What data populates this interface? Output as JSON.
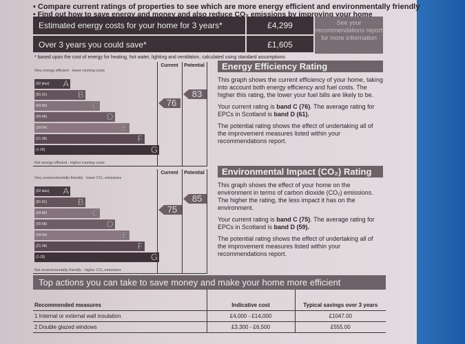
{
  "bullets": [
    "Compare current ratings of properties to see which are more energy efficient and environmentally friendly",
    "Find out how to save energy and money and also reduce CO₂ emissions by improving your home"
  ],
  "costs": {
    "rows": [
      {
        "label": "Estimated energy costs for your home for 3 years*",
        "value": "£4,299"
      },
      {
        "label": "Over 3 years you could save*",
        "value": "£1,605"
      }
    ],
    "see_note": "See your recommendations report for more information",
    "footnote": "* based upon the cost of energy for heating, hot water, lighting and ventilation, calculated using standard assumptions"
  },
  "energy_chart": {
    "top_label": "Very energy efficient - lower running costs",
    "bottom_label": "Not energy efficient - higher running costs",
    "current_header": "Current",
    "potential_header": "Potential",
    "current": "76",
    "potential": "83",
    "bands": [
      {
        "range": "(92 plus)",
        "letter": "A"
      },
      {
        "range": "(81-91)",
        "letter": "B"
      },
      {
        "range": "(69-80)",
        "letter": "C"
      },
      {
        "range": "(55-68)",
        "letter": "D"
      },
      {
        "range": "(39-54)",
        "letter": "E"
      },
      {
        "range": "(21-38)",
        "letter": "F"
      },
      {
        "range": "(1-20)",
        "letter": "G"
      }
    ]
  },
  "env_chart": {
    "top_label": "Very environmentally friendly - lower CO₂ emissions",
    "bottom_label": "Not environmentally friendly - higher CO₂ emissions",
    "current_header": "Current",
    "potential_header": "Potential",
    "current": "75",
    "potential": "85"
  },
  "energy_panel": {
    "title": "Energy Efficiency Rating",
    "p1": "This graph shows the current efficiency of your home, taking into account both energy efficiency and fuel costs. The higher this rating, the lower your fuel bills are likely to be.",
    "p2a": "Your current rating is ",
    "p2b": "band C (76)",
    "p2c": ". The average rating for EPCs in Scotland is ",
    "p2d": "band D (61).",
    "p3": "The potential rating shows the effect of undertaking all of the improvement measures listed within your recommendations report."
  },
  "env_panel": {
    "title": "Environmental Impact (CO₂) Rating",
    "p1": "This graph shows the effect of your home on the environment in terms of carbon dioxide (CO₂) emissions. The higher the rating, the less impact it has on the environment.",
    "p2a": "Your current rating is ",
    "p2b": "band C (75)",
    "p2c": ". The average rating for EPCs in Scotland is ",
    "p2d": "band D (59).",
    "p3": "The potential rating shows the effect of undertaking all of the improvement measures listed within your recommendations report."
  },
  "actions": {
    "title": "Top actions you can take to save money and make your home more efficient",
    "headers": [
      "Recommended measures",
      "Indicative cost",
      "Typical savings over 3 years"
    ],
    "rows": [
      [
        "1 Internal or external wall insulation",
        "£4,000 - £14,000",
        "£1047.00"
      ],
      [
        "2 Double glazed windows",
        "£3,300 - £6,500",
        "£555.00"
      ]
    ]
  },
  "colors": {
    "band_colors": [
      "#4a3c43",
      "#66545c",
      "#85737b",
      "#6f5d66",
      "#8a7780",
      "#5b4a52",
      "#3e3238"
    ],
    "header_dark": "#3b3136",
    "heading_bar": "#6d6268"
  }
}
